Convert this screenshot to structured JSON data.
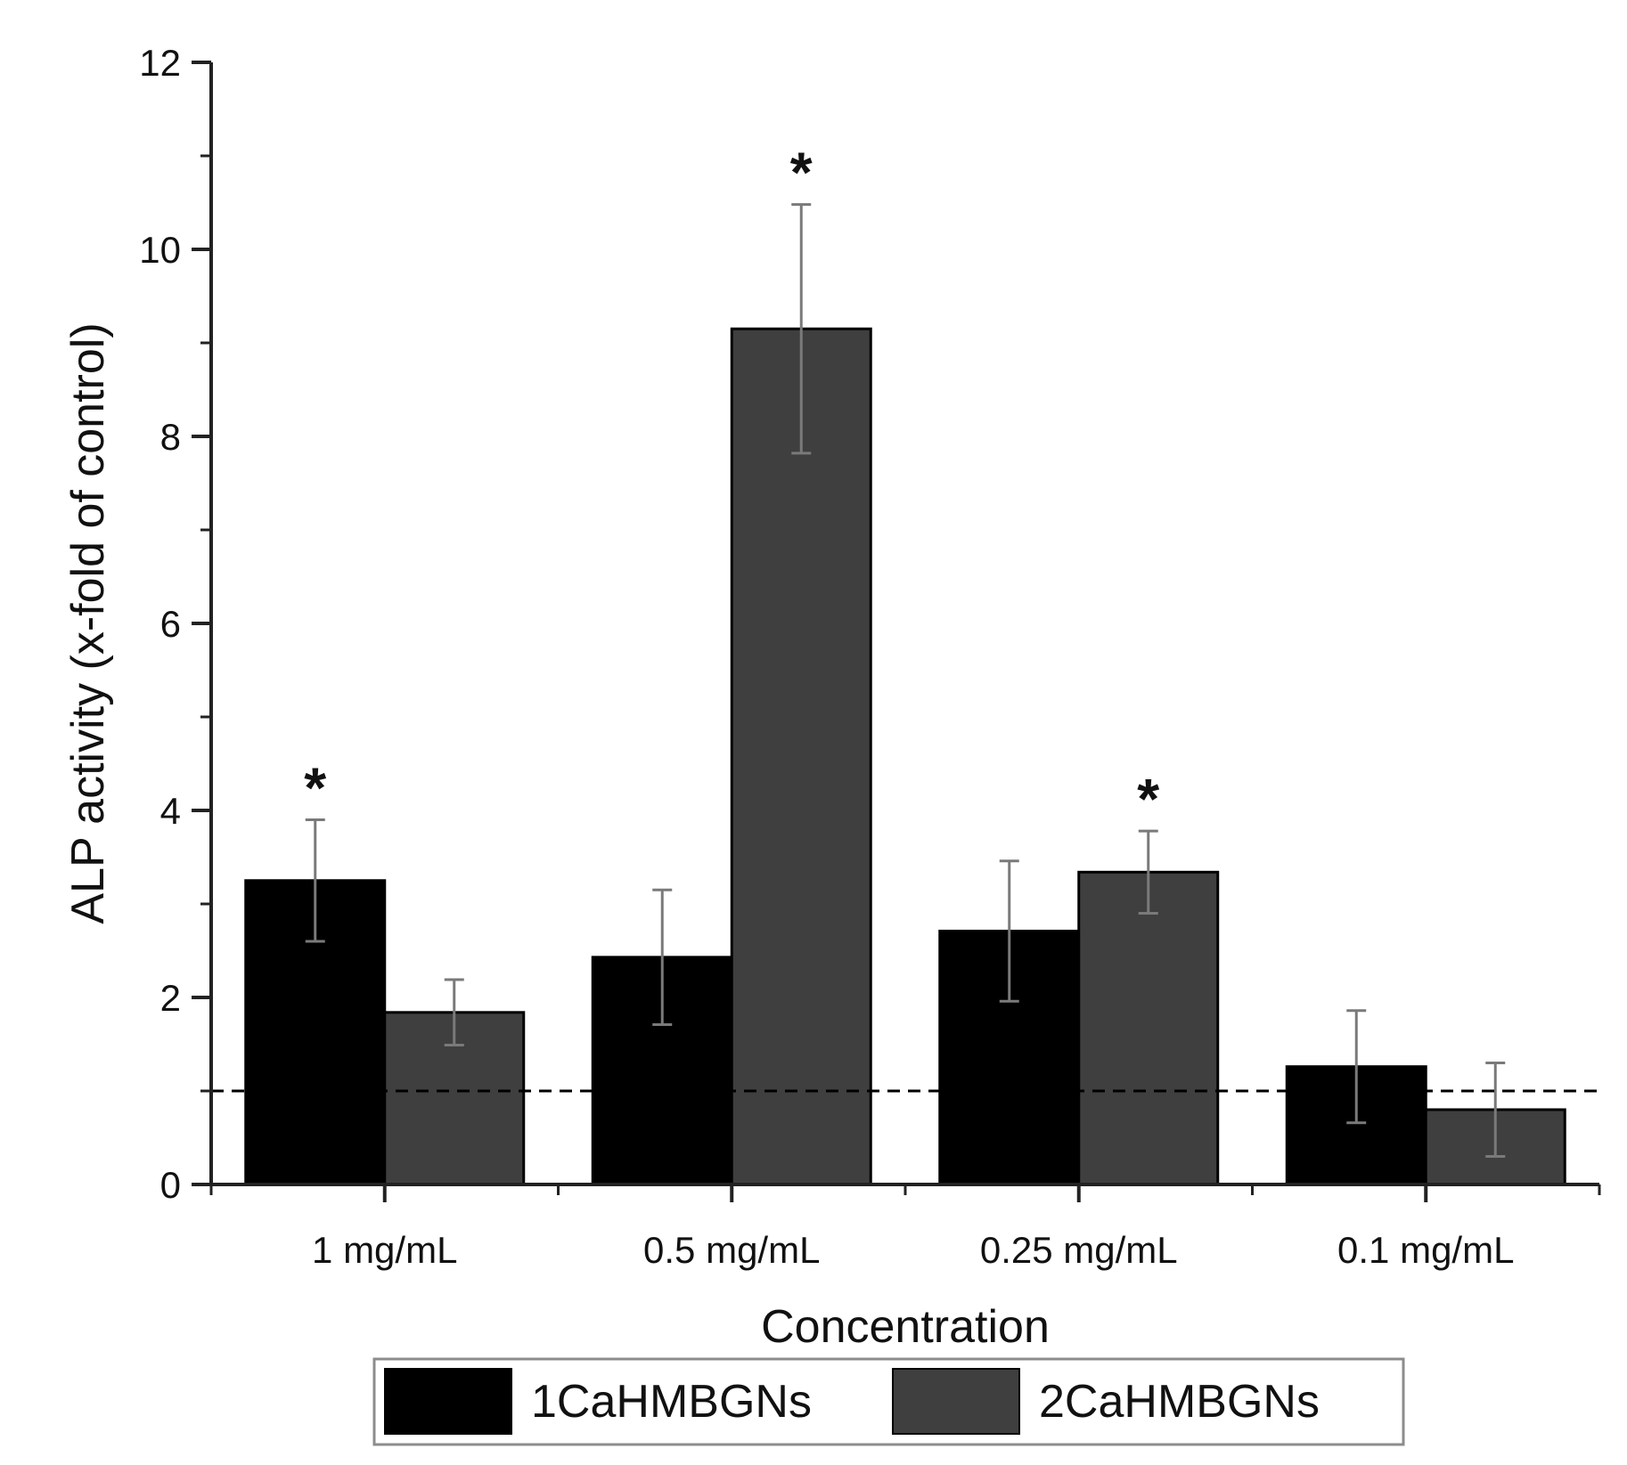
{
  "chart_data": {
    "type": "bar",
    "title": "",
    "xlabel": "Concentration",
    "ylabel": "ALP activity (x-fold of control)",
    "ylim": [
      0,
      12
    ],
    "yticks": [
      0,
      2,
      4,
      6,
      8,
      10,
      12
    ],
    "categories": [
      "1 mg/mL",
      "0.5 mg/mL",
      "0.25 mg/mL",
      "0.1 mg/mL"
    ],
    "series": [
      {
        "name": "1CaHMBGNs",
        "color": "#000000",
        "values": [
          3.25,
          2.43,
          2.71,
          1.26
        ],
        "errors": [
          0.65,
          0.72,
          0.75,
          0.6
        ],
        "significance": [
          "*",
          "",
          "",
          ""
        ]
      },
      {
        "name": "2CaHMBGNs",
        "color": "#3f3f3f",
        "values": [
          1.84,
          9.15,
          3.34,
          0.8
        ],
        "errors": [
          0.35,
          1.33,
          0.44,
          0.5
        ],
        "significance": [
          "",
          "*",
          "*",
          ""
        ]
      }
    ],
    "reference_line": {
      "value": 1.0,
      "style": "dashed"
    },
    "legend_position": "bottom-center",
    "grid": false
  }
}
